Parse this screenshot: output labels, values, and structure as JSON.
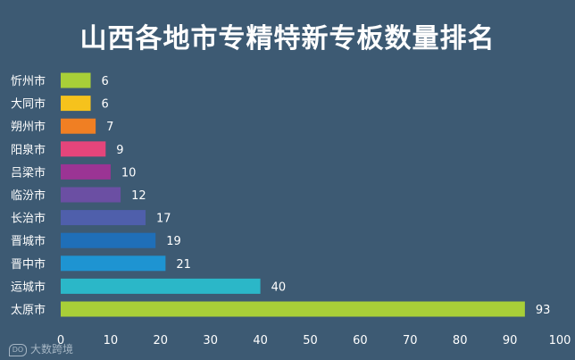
{
  "chart_data": {
    "type": "bar",
    "orientation": "horizontal",
    "title": "山西各地市专精特新专板数量排名",
    "categories": [
      "忻州市",
      "大同市",
      "朔州市",
      "阳泉市",
      "吕梁市",
      "临汾市",
      "长治市",
      "晋城市",
      "晋中市",
      "运城市",
      "太原市"
    ],
    "values": [
      6,
      6,
      7,
      9,
      10,
      12,
      17,
      19,
      21,
      40,
      93
    ],
    "colors": [
      "#a8cf38",
      "#f6c21c",
      "#f07f23",
      "#e5457b",
      "#9b3494",
      "#6b4fa3",
      "#4f5fab",
      "#1f6fb8",
      "#1e94d2",
      "#2bb7c8",
      "#a8cf38"
    ],
    "xlim": [
      0,
      100
    ],
    "xticks": [
      0,
      10,
      20,
      30,
      40,
      50,
      60,
      70,
      80,
      90,
      100
    ],
    "grid": false,
    "legend": "none",
    "xlabel": "",
    "ylabel": ""
  },
  "watermark": "大数跨境",
  "colors": {
    "background": "#3d5a73",
    "text": "#ffffff"
  }
}
